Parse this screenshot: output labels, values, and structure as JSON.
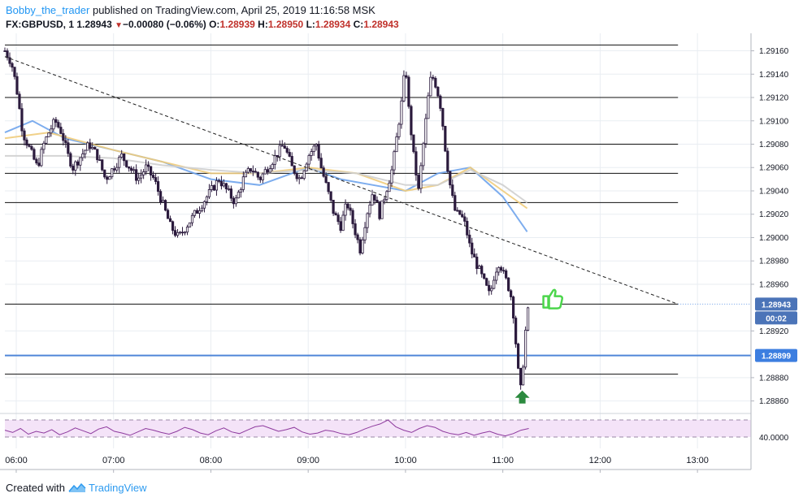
{
  "header": {
    "author": "Bobby_the_trader",
    "published": " published on TradingView.com, April 25, 2019 11:16:58 MSK",
    "symbol": "FX:GBPUSD, 1",
    "last": "1.28943",
    "change_arrow": "▼",
    "change": "−0.00080 (−0.06%)",
    "o_label": "O:",
    "o_value": "1.28939",
    "h_label": "H:",
    "h_value": "1.28950",
    "l_label": "L:",
    "l_value": "1.28934",
    "c_label": "C:",
    "c_value": "1.28943"
  },
  "footer": {
    "created_with": "Created with",
    "brand": "TradingView"
  },
  "colors": {
    "candle": "#2b1a3d",
    "grid": "#e9edf2",
    "blue_level": "#4f86d8",
    "badge_dark": "#4b74b8",
    "badge_blue": "#3c7ee0",
    "ma_fast": "#6fa4ec",
    "ma_mid": "#f0cc7c",
    "ma_slow": "#cfcfcf",
    "rsi": "#8e3a9e",
    "rsi_fill": "#f4e3f8",
    "up_arrow": "#2c8a3f",
    "thumb": "#4cd64c"
  },
  "icons": [
    "thumbs-up-icon",
    "up-arrow-icon",
    "tradingview-logo-icon"
  ],
  "chart_data": {
    "type": "candlestick",
    "symbol": "FX:GBPUSD",
    "interval": "1",
    "ylim": [
      1.2885,
      1.29175
    ],
    "y_ticks": [
      "1.28860",
      "1.28880",
      "1.28920",
      "1.28960",
      "1.28980",
      "1.29000",
      "1.29020",
      "1.29040",
      "1.29060",
      "1.29080",
      "1.29100",
      "1.29120",
      "1.29140",
      "1.29160"
    ],
    "x_ticks": [
      "06:00",
      "07:00",
      "08:00",
      "09:00",
      "10:00",
      "11:00",
      "12:00",
      "13:00"
    ],
    "time_range": [
      "05:53",
      "13:33"
    ],
    "last_candle_time": "11:16",
    "price_badges": [
      {
        "label": "1.28943",
        "value": 1.28943,
        "style": "dark"
      },
      {
        "label": "00:02",
        "value": 1.28934,
        "style": "dark"
      },
      {
        "label": "1.28899",
        "value": 1.28899,
        "style": "blue"
      }
    ],
    "horizontal_levels": [
      1.29165,
      1.2912,
      1.2908,
      1.29055,
      1.2903,
      1.28943,
      1.28883
    ],
    "blue_level": 1.28899,
    "trendline": {
      "from": [
        "05:53",
        1.29155
      ],
      "to": [
        "12:48",
        1.28943
      ],
      "style": "dashed"
    },
    "close_path": [
      [
        "05:53",
        1.2916
      ],
      [
        "05:57",
        1.2915
      ],
      [
        "06:00",
        1.2913
      ],
      [
        "06:04",
        1.2909
      ],
      [
        "06:07",
        1.2908
      ],
      [
        "06:10",
        1.2907
      ],
      [
        "06:13",
        1.2906
      ],
      [
        "06:17",
        1.2908
      ],
      [
        "06:20",
        1.2909
      ],
      [
        "06:24",
        1.291
      ],
      [
        "06:28",
        1.2909
      ],
      [
        "06:32",
        1.2907
      ],
      [
        "06:35",
        1.2906
      ],
      [
        "06:40",
        1.2907
      ],
      [
        "06:45",
        1.2908
      ],
      [
        "06:50",
        1.2907
      ],
      [
        "06:55",
        1.2905
      ],
      [
        "07:00",
        1.2906
      ],
      [
        "07:05",
        1.2907
      ],
      [
        "07:10",
        1.2906
      ],
      [
        "07:15",
        1.2905
      ],
      [
        "07:20",
        1.2906
      ],
      [
        "07:25",
        1.2905
      ],
      [
        "07:30",
        1.2903
      ],
      [
        "07:35",
        1.2901
      ],
      [
        "07:40",
        1.29
      ],
      [
        "07:45",
        1.2901
      ],
      [
        "07:50",
        1.2902
      ],
      [
        "07:55",
        1.2903
      ],
      [
        "08:00",
        1.2904
      ],
      [
        "08:05",
        1.2905
      ],
      [
        "08:10",
        1.2904
      ],
      [
        "08:15",
        1.2903
      ],
      [
        "08:20",
        1.2905
      ],
      [
        "08:25",
        1.2906
      ],
      [
        "08:30",
        1.2905
      ],
      [
        "08:35",
        1.2906
      ],
      [
        "08:40",
        1.2907
      ],
      [
        "08:45",
        1.2908
      ],
      [
        "08:50",
        1.2906
      ],
      [
        "08:55",
        1.2905
      ],
      [
        "09:00",
        1.2907
      ],
      [
        "09:05",
        1.2908
      ],
      [
        "09:08",
        1.2906
      ],
      [
        "09:12",
        1.2904
      ],
      [
        "09:16",
        1.2902
      ],
      [
        "09:20",
        1.2901
      ],
      [
        "09:24",
        1.2903
      ],
      [
        "09:28",
        1.2901
      ],
      [
        "09:32",
        1.2899
      ],
      [
        "09:36",
        1.2902
      ],
      [
        "09:40",
        1.2904
      ],
      [
        "09:44",
        1.2902
      ],
      [
        "09:48",
        1.2904
      ],
      [
        "09:52",
        1.2906
      ],
      [
        "09:55",
        1.2909
      ],
      [
        "09:58",
        1.2912
      ],
      [
        "10:00",
        1.2915
      ],
      [
        "10:02",
        1.2911
      ],
      [
        "10:05",
        1.2907
      ],
      [
        "10:08",
        1.2904
      ],
      [
        "10:11",
        1.2908
      ],
      [
        "10:14",
        1.2912
      ],
      [
        "10:16",
        1.2914
      ],
      [
        "10:19",
        1.2913
      ],
      [
        "10:22",
        1.2911
      ],
      [
        "10:25",
        1.2907
      ],
      [
        "10:28",
        1.2904
      ],
      [
        "10:31",
        1.2902
      ],
      [
        "10:34",
        1.2902
      ],
      [
        "10:37",
        1.2901
      ],
      [
        "10:40",
        1.2899
      ],
      [
        "10:43",
        1.2898
      ],
      [
        "10:46",
        1.2897
      ],
      [
        "10:49",
        1.2896
      ],
      [
        "10:52",
        1.2895
      ],
      [
        "10:55",
        1.2897
      ],
      [
        "10:58",
        1.2898
      ],
      [
        "11:00",
        1.2897
      ],
      [
        "11:03",
        1.2896
      ],
      [
        "11:05",
        1.2895
      ],
      [
        "11:07",
        1.2893
      ],
      [
        "11:09",
        1.2889
      ],
      [
        "11:11",
        1.2887
      ],
      [
        "11:13",
        1.289
      ],
      [
        "11:14",
        1.2892
      ],
      [
        "11:15",
        1.2893
      ],
      [
        "11:16",
        1.28943
      ]
    ],
    "moving_averages": [
      {
        "color": "ma_fast",
        "path": [
          [
            "05:53",
            1.2909
          ],
          [
            "06:10",
            1.291
          ],
          [
            "06:30",
            1.29085
          ],
          [
            "07:00",
            1.29075
          ],
          [
            "07:30",
            1.29065
          ],
          [
            "08:00",
            1.2905
          ],
          [
            "08:30",
            1.29045
          ],
          [
            "09:00",
            1.2906
          ],
          [
            "09:20",
            1.2905
          ],
          [
            "09:40",
            1.29045
          ],
          [
            "10:00",
            1.2904
          ],
          [
            "10:20",
            1.29055
          ],
          [
            "10:40",
            1.2906
          ],
          [
            "11:00",
            1.29035
          ],
          [
            "11:15",
            1.29005
          ]
        ]
      },
      {
        "color": "ma_mid",
        "path": [
          [
            "05:53",
            1.29085
          ],
          [
            "06:20",
            1.2909
          ],
          [
            "07:00",
            1.29075
          ],
          [
            "07:30",
            1.29065
          ],
          [
            "08:00",
            1.29055
          ],
          [
            "08:30",
            1.29055
          ],
          [
            "09:00",
            1.2906
          ],
          [
            "09:30",
            1.29055
          ],
          [
            "10:00",
            1.2904
          ],
          [
            "10:20",
            1.29045
          ],
          [
            "10:40",
            1.2906
          ],
          [
            "11:00",
            1.2904
          ],
          [
            "11:15",
            1.29025
          ]
        ]
      },
      {
        "color": "ma_slow",
        "path": [
          [
            "05:53",
            1.2907
          ],
          [
            "06:30",
            1.2907
          ],
          [
            "07:00",
            1.29068
          ],
          [
            "07:30",
            1.29062
          ],
          [
            "08:00",
            1.29058
          ],
          [
            "08:30",
            1.29055
          ],
          [
            "09:00",
            1.29058
          ],
          [
            "09:30",
            1.29055
          ],
          [
            "10:00",
            1.29045
          ],
          [
            "10:20",
            1.29045
          ],
          [
            "10:40",
            1.29058
          ],
          [
            "11:00",
            1.29045
          ],
          [
            "11:15",
            1.2903
          ]
        ]
      }
    ],
    "rsi": {
      "label": "40.0000",
      "ylim": [
        20,
        80
      ],
      "bands": [
        70,
        40
      ],
      "values": [
        52,
        48,
        55,
        45,
        50,
        47,
        53,
        44,
        49,
        56,
        51,
        46,
        54,
        58,
        50,
        47,
        43,
        49,
        55,
        52,
        48,
        45,
        50,
        57,
        53,
        47,
        44,
        51,
        56,
        49,
        46,
        52,
        58,
        60,
        55,
        50,
        53,
        57,
        49,
        45,
        47,
        52,
        50,
        46,
        44,
        48,
        54,
        59,
        63,
        70,
        58,
        52,
        48,
        55,
        60,
        57,
        50,
        46,
        44,
        48,
        43,
        47,
        50,
        45,
        42,
        46,
        52,
        55
      ]
    }
  }
}
